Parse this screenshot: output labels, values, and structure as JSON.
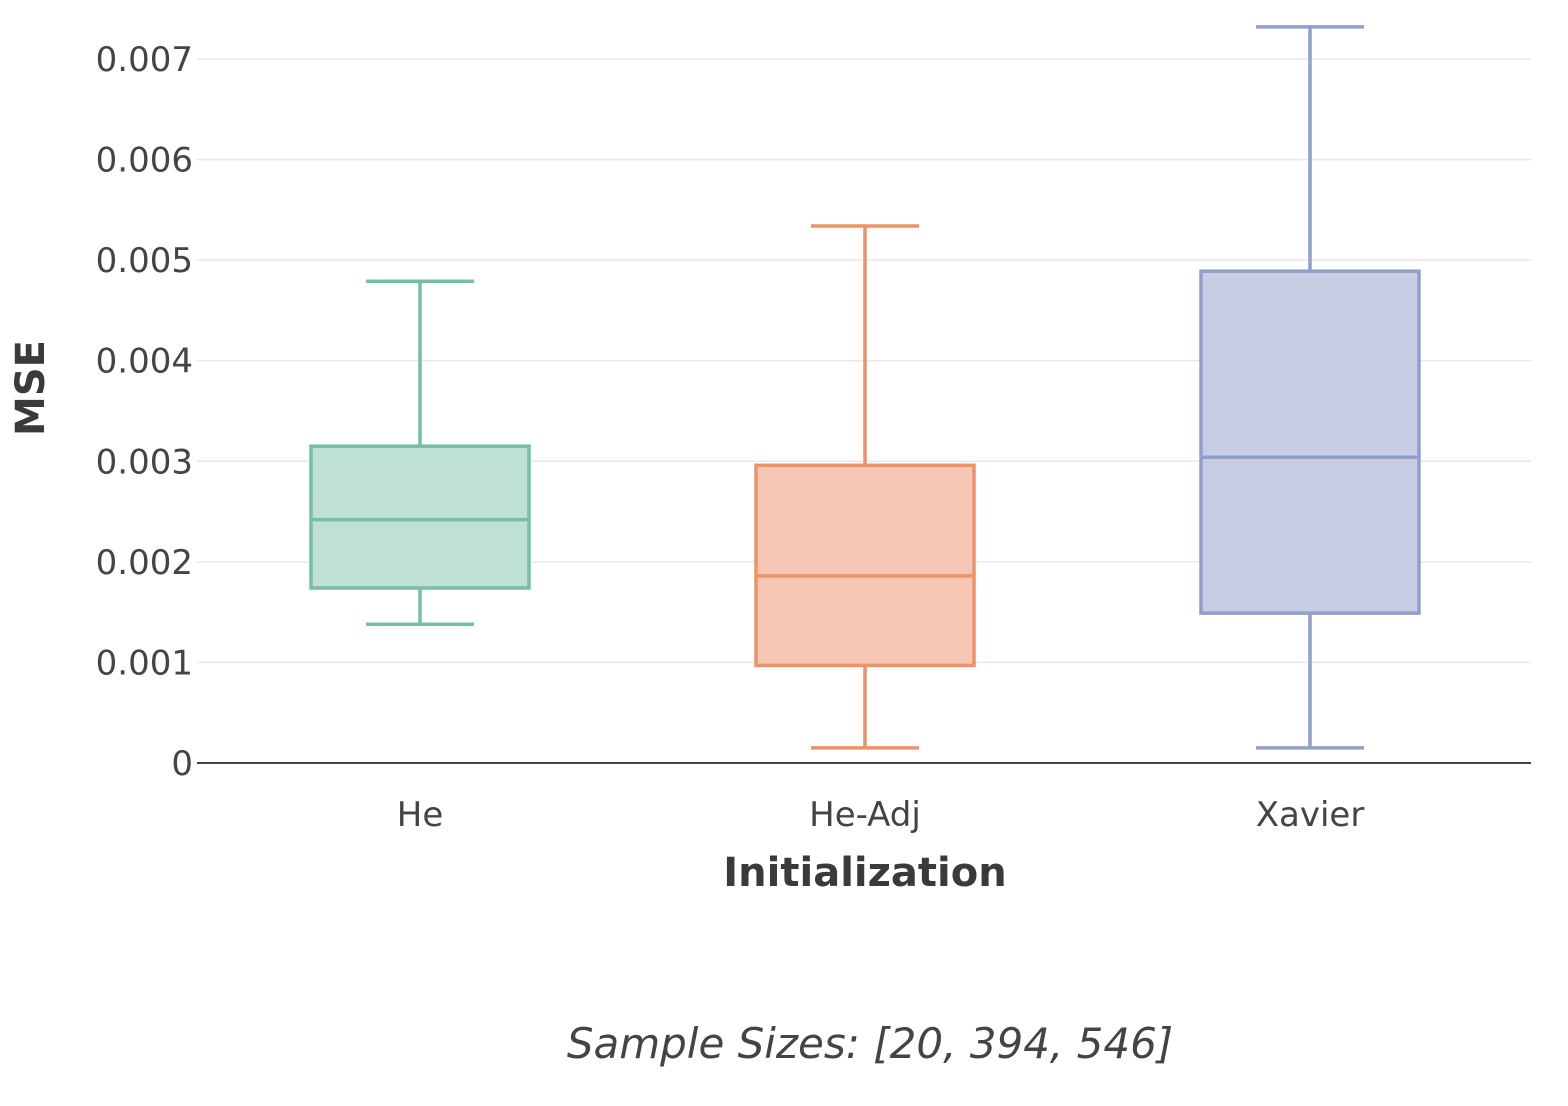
{
  "chart_data": {
    "type": "box",
    "xlabel": "Initialization",
    "ylabel": "MSE",
    "ylim": [
      0,
      0.0073
    ],
    "yticks": [
      0,
      0.001,
      0.002,
      0.003,
      0.004,
      0.005,
      0.006,
      0.007
    ],
    "ytick_labels": [
      "0",
      "0.001",
      "0.002",
      "0.003",
      "0.004",
      "0.005",
      "0.006",
      "0.007"
    ],
    "grid": true,
    "annotation": "Sample Sizes: [20, 394, 546]",
    "categories": [
      "He",
      "He-Adj",
      "Xavier"
    ],
    "boxes": [
      {
        "category": "He",
        "min": 0.00138,
        "q1": 0.00174,
        "median": 0.00242,
        "q3": 0.00315,
        "max": 0.00479,
        "stroke": "#76bfa3",
        "fill": "#bfe0d4"
      },
      {
        "category": "He-Adj",
        "min": 0.00015,
        "q1": 0.00097,
        "median": 0.00186,
        "q3": 0.00296,
        "max": 0.00534,
        "stroke": "#ee9268",
        "fill": "#f6c7b5"
      },
      {
        "category": "Xavier",
        "min": 0.00015,
        "q1": 0.00149,
        "median": 0.00304,
        "q3": 0.00489,
        "max": 0.00732,
        "stroke": "#909fcb",
        "fill": "#c7cee3"
      }
    ]
  }
}
